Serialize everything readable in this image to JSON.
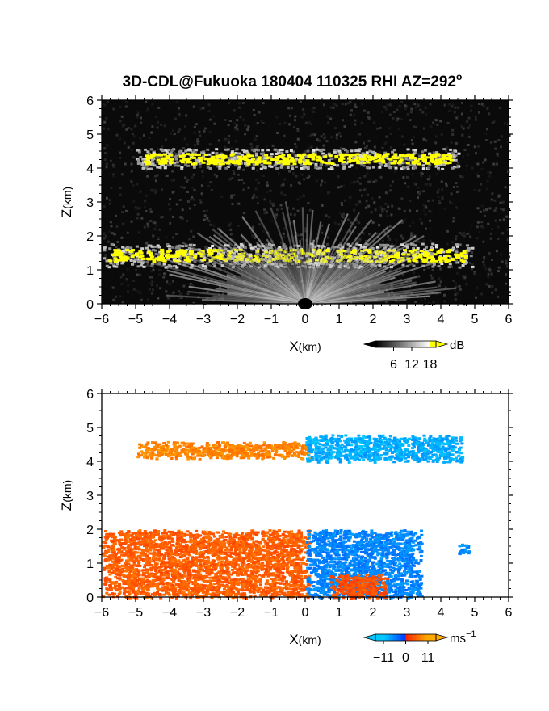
{
  "title": {
    "main": "3D-CDL@Fukuoka 180404 110325 RHI AZ=292",
    "deg_sup": "o"
  },
  "colors": {
    "signal_gray_dark": "#000000",
    "signal_gray_light": "#ffffff",
    "signal_yellow": "#ffff00",
    "velocity_blue": "#0033ff",
    "velocity_cyan": "#00c8ff",
    "velocity_red": "#ff2000",
    "velocity_orange": "#ffa800"
  },
  "chart_data": [
    {
      "type": "heatmap",
      "panel": "top",
      "quantity": "signal intensity",
      "xlabel_main": "X",
      "xlabel_unit": "(km)",
      "ylabel_main": "Z",
      "ylabel_unit": "(km)",
      "xlim": [
        -6,
        6
      ],
      "ylim": [
        0,
        6
      ],
      "xticks": [
        "−6",
        "−5",
        "−4",
        "−3",
        "−2",
        "−1",
        "0",
        "1",
        "2",
        "3",
        "4",
        "5",
        "6"
      ],
      "yticks": [
        "0",
        "1",
        "2",
        "3",
        "4",
        "5",
        "6"
      ],
      "colorbar": {
        "unit": "dB",
        "ticks": [
          "6",
          "12",
          "18"
        ],
        "tick_values": [
          6,
          12,
          18
        ],
        "range": [
          0,
          20
        ],
        "colormap": "gray-to-yellow"
      },
      "layers": [
        {
          "name": "upper cloud layer",
          "x_range": [
            -5.0,
            4.5
          ],
          "z_range": [
            4.0,
            4.6
          ],
          "high_signal": true
        },
        {
          "name": "lower cloud segments",
          "x_range": [
            -6.0,
            4.9
          ],
          "z_range": [
            1.1,
            1.8
          ],
          "high_signal": true
        },
        {
          "name": "near-ground return fan",
          "x_range": [
            -3.0,
            4.0
          ],
          "z_range": [
            0.0,
            2.0
          ],
          "high_signal": false
        }
      ]
    },
    {
      "type": "heatmap",
      "panel": "bottom",
      "quantity": "radial velocity",
      "xlabel_main": "X",
      "xlabel_unit": "(km)",
      "ylabel_main": "Z",
      "ylabel_unit": "(km)",
      "xlim": [
        -6,
        6
      ],
      "ylim": [
        0,
        6
      ],
      "xticks": [
        "−6",
        "−5",
        "−4",
        "−3",
        "−2",
        "−1",
        "0",
        "1",
        "2",
        "3",
        "4",
        "5",
        "6"
      ],
      "yticks": [
        "0",
        "1",
        "2",
        "3",
        "4",
        "5",
        "6"
      ],
      "colorbar": {
        "unit": "ms",
        "unit_sup": "−1",
        "ticks": [
          "−11",
          "0",
          "11"
        ],
        "tick_values": [
          -11,
          0,
          11
        ],
        "range": [
          -15,
          15
        ],
        "colormap": "cyan-blue-red-orange"
      },
      "layers": [
        {
          "name": "upper layer receding",
          "x_range": [
            -5.0,
            0.2
          ],
          "z_range": [
            4.1,
            4.6
          ],
          "velocity": 8
        },
        {
          "name": "upper layer approaching",
          "x_range": [
            0.0,
            4.6
          ],
          "z_range": [
            4.0,
            4.8
          ],
          "velocity": -9
        },
        {
          "name": "lower layer receding",
          "x_range": [
            -6.0,
            0.1
          ],
          "z_range": [
            0.0,
            2.0
          ],
          "velocity": 5
        },
        {
          "name": "lower layer approaching",
          "x_range": [
            0.0,
            3.4
          ],
          "z_range": [
            0.0,
            2.0
          ],
          "velocity": -6
        },
        {
          "name": "near-ground receding core",
          "x_range": [
            0.7,
            2.4
          ],
          "z_range": [
            0.0,
            0.7
          ],
          "velocity": 4
        },
        {
          "name": "isolated echo",
          "x_range": [
            4.5,
            4.8
          ],
          "z_range": [
            1.3,
            1.6
          ],
          "velocity": -7
        }
      ]
    }
  ]
}
